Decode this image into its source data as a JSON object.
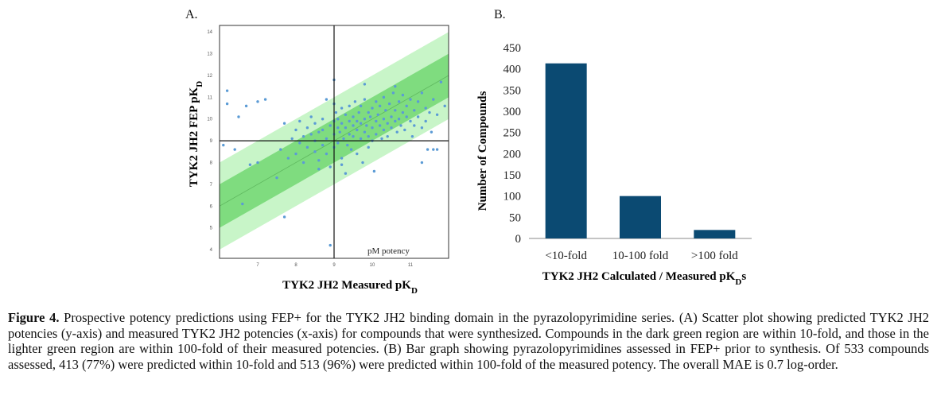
{
  "panels": {
    "a_label": "A.",
    "b_label": "B."
  },
  "chart_data": [
    {
      "type": "scatter",
      "xlabel": "TYK2 JH2 Measured pK",
      "xlabel_sub": "D",
      "ylabel": "TYK2 JH2 FEP pK",
      "ylabel_sub": "D",
      "xlim": [
        6,
        12
      ],
      "ylim": [
        3.6,
        14.3
      ],
      "xticks": [
        7,
        8,
        9,
        10,
        11
      ],
      "yticks": [
        4,
        5,
        6,
        7,
        8,
        9,
        10,
        11,
        12,
        13,
        14
      ],
      "crosshair": {
        "x": 9,
        "y": 9
      },
      "annotation": "pM potency",
      "bands": {
        "inner_halfwidth": 1,
        "outer_halfwidth": 2,
        "inner_color": "#7fdc7f",
        "outer_color": "#c8f5c8"
      },
      "point_color": "#5b9bd5",
      "grid": false,
      "points": [
        [
          6.1,
          8.8
        ],
        [
          6.2,
          11.3
        ],
        [
          6.2,
          10.7
        ],
        [
          6.4,
          8.6
        ],
        [
          6.5,
          10.1
        ],
        [
          6.6,
          6.1
        ],
        [
          6.7,
          10.6
        ],
        [
          6.8,
          7.9
        ],
        [
          7.0,
          10.8
        ],
        [
          7.0,
          8.0
        ],
        [
          7.2,
          10.9
        ],
        [
          7.5,
          7.3
        ],
        [
          7.6,
          8.6
        ],
        [
          7.7,
          9.8
        ],
        [
          7.7,
          5.5
        ],
        [
          7.8,
          8.2
        ],
        [
          7.9,
          9.1
        ],
        [
          8.0,
          9.5
        ],
        [
          8.0,
          8.4
        ],
        [
          8.1,
          9.9
        ],
        [
          8.1,
          8.9
        ],
        [
          8.2,
          9.2
        ],
        [
          8.2,
          8.0
        ],
        [
          8.3,
          9.6
        ],
        [
          8.3,
          8.7
        ],
        [
          8.4,
          9.3
        ],
        [
          8.4,
          10.1
        ],
        [
          8.5,
          8.5
        ],
        [
          8.5,
          9.0
        ],
        [
          8.5,
          9.8
        ],
        [
          8.6,
          9.4
        ],
        [
          8.6,
          8.1
        ],
        [
          8.7,
          10.0
        ],
        [
          8.7,
          8.8
        ],
        [
          8.7,
          9.5
        ],
        [
          8.8,
          9.1
        ],
        [
          8.8,
          10.9
        ],
        [
          8.8,
          8.4
        ],
        [
          8.9,
          9.7
        ],
        [
          8.9,
          7.8
        ],
        [
          8.9,
          4.2
        ],
        [
          9.0,
          9.3
        ],
        [
          9.0,
          11.8
        ],
        [
          9.0,
          8.7
        ],
        [
          9.0,
          9.9
        ],
        [
          9.05,
          10.3
        ],
        [
          9.1,
          9.6
        ],
        [
          9.1,
          8.9
        ],
        [
          9.1,
          10.0
        ],
        [
          9.15,
          9.4
        ],
        [
          9.2,
          8.2
        ],
        [
          9.2,
          9.8
        ],
        [
          9.2,
          10.5
        ],
        [
          9.25,
          9.1
        ],
        [
          9.3,
          9.6
        ],
        [
          9.3,
          7.5
        ],
        [
          9.3,
          10.2
        ],
        [
          9.35,
          8.8
        ],
        [
          9.4,
          9.9
        ],
        [
          9.4,
          9.3
        ],
        [
          9.4,
          10.6
        ],
        [
          9.45,
          8.6
        ],
        [
          9.5,
          9.7
        ],
        [
          9.5,
          10.1
        ],
        [
          9.5,
          9.2
        ],
        [
          9.55,
          10.8
        ],
        [
          9.6,
          9.5
        ],
        [
          9.6,
          8.4
        ],
        [
          9.6,
          9.9
        ],
        [
          9.65,
          10.3
        ],
        [
          9.7,
          9.1
        ],
        [
          9.7,
          9.8
        ],
        [
          9.7,
          10.6
        ],
        [
          9.75,
          8.0
        ],
        [
          9.8,
          9.4
        ],
        [
          9.8,
          10.0
        ],
        [
          9.8,
          10.9
        ],
        [
          9.85,
          9.7
        ],
        [
          9.9,
          9.2
        ],
        [
          9.9,
          10.3
        ],
        [
          9.9,
          8.7
        ],
        [
          9.95,
          10.1
        ],
        [
          10.0,
          9.6
        ],
        [
          10.0,
          10.5
        ],
        [
          10.0,
          9.0
        ],
        [
          10.05,
          7.6
        ],
        [
          10.1,
          9.9
        ],
        [
          10.1,
          10.8
        ],
        [
          10.1,
          9.3
        ],
        [
          10.15,
          10.2
        ],
        [
          10.2,
          9.7
        ],
        [
          10.2,
          10.6
        ],
        [
          10.25,
          9.1
        ],
        [
          10.3,
          10.0
        ],
        [
          10.3,
          9.5
        ],
        [
          10.3,
          11.0
        ],
        [
          10.35,
          10.4
        ],
        [
          10.4,
          9.8
        ],
        [
          10.4,
          9.2
        ],
        [
          10.45,
          10.7
        ],
        [
          10.5,
          10.1
        ],
        [
          10.5,
          9.6
        ],
        [
          10.55,
          11.2
        ],
        [
          10.6,
          9.9
        ],
        [
          10.6,
          10.4
        ],
        [
          10.65,
          9.4
        ],
        [
          10.7,
          10.8
        ],
        [
          10.7,
          10.0
        ],
        [
          10.75,
          9.7
        ],
        [
          10.8,
          10.3
        ],
        [
          10.8,
          11.1
        ],
        [
          10.85,
          9.5
        ],
        [
          10.9,
          10.1
        ],
        [
          10.9,
          10.6
        ],
        [
          11.0,
          9.9
        ],
        [
          11.0,
          10.9
        ],
        [
          11.05,
          9.2
        ],
        [
          11.1,
          10.4
        ],
        [
          11.1,
          9.7
        ],
        [
          11.2,
          10.8
        ],
        [
          11.2,
          10.1
        ],
        [
          11.3,
          11.2
        ],
        [
          11.3,
          9.6
        ],
        [
          11.4,
          10.5
        ],
        [
          11.4,
          9.9
        ],
        [
          11.45,
          8.6
        ],
        [
          11.5,
          10.3
        ],
        [
          11.55,
          9.4
        ],
        [
          11.6,
          8.6
        ],
        [
          11.6,
          10.9
        ],
        [
          11.7,
          10.2
        ],
        [
          11.8,
          11.7
        ],
        [
          11.9,
          10.6
        ],
        [
          11.7,
          8.6
        ],
        [
          11.3,
          8.0
        ],
        [
          9.2,
          7.9
        ],
        [
          8.6,
          7.7
        ],
        [
          9.8,
          11.6
        ],
        [
          10.6,
          11.5
        ],
        [
          9.0,
          10.7
        ]
      ]
    },
    {
      "type": "bar",
      "categories": [
        "<10-fold",
        "10-100 fold",
        ">100 fold"
      ],
      "values": [
        413,
        100,
        20
      ],
      "ylabel": "Number of Compounds",
      "xlabel": "TYK2 JH2 Calculated / Measured pK",
      "xlabel_sub": "D",
      "xlabel_suffix": "s",
      "ylim": [
        0,
        450
      ],
      "yticks": [
        0,
        50,
        100,
        150,
        200,
        250,
        300,
        350,
        400,
        450
      ],
      "bar_color": "#0b4a72",
      "grid": false
    }
  ],
  "caption": {
    "figure_label": "Figure 4.",
    "text": "Prospective potency predictions using FEP+ for the TYK2 JH2 binding domain in the pyrazolopyrimidine series. (A) Scatter plot showing predicted TYK2 JH2 potencies (y-axis) and measured TYK2 JH2 potencies (x-axis) for compounds that were synthesized. Compounds in the dark green region are within 10-fold, and those in the lighter green region are within 100-fold of their measured potencies. (B) Bar graph showing pyrazolopyrimidines assessed in FEP+ prior to synthesis. Of 533 compounds assessed, 413 (77%) were predicted within 10-fold and 513 (96%) were predicted within 100-fold of the measured potency. The overall MAE is 0.7 log-order."
  }
}
